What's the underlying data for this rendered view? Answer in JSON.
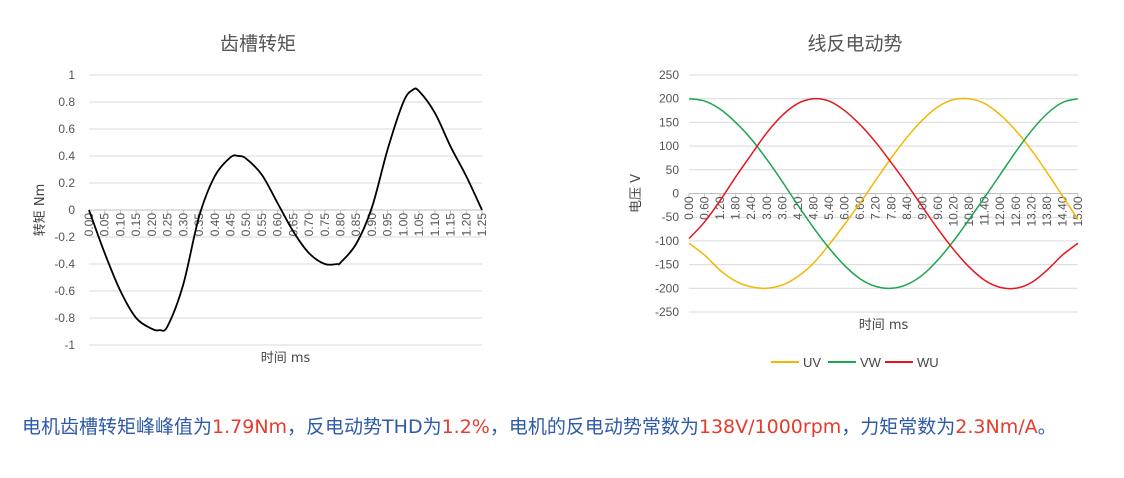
{
  "chart_data": [
    {
      "type": "line",
      "title": "齿槽转矩",
      "xlabel": "时间 ms",
      "ylabel": "转矩 Nm",
      "ylim": [
        -1,
        1
      ],
      "yticks": [
        "1",
        "0.8",
        "0.6",
        "0.4",
        "0.2",
        "0",
        "-0.2",
        "-0.4",
        "-0.6",
        "-0.8",
        "-1"
      ],
      "ytick_values": [
        1,
        0.8,
        0.6,
        0.4,
        0.2,
        0,
        -0.2,
        -0.4,
        -0.6,
        -0.8,
        -1
      ],
      "categories": [
        "0.00",
        "0.05",
        "0.10",
        "0.15",
        "0.20",
        "0.25",
        "0.30",
        "0.35",
        "0.40",
        "0.45",
        "0.50",
        "0.55",
        "0.60",
        "0.65",
        "0.70",
        "0.75",
        "0.80",
        "0.85",
        "0.90",
        "0.95",
        "1.00",
        "1.05",
        "1.10",
        "1.15",
        "1.20",
        "1.25"
      ],
      "grid": true,
      "series": [
        {
          "color": "#000000",
          "x": [
            0,
            0.05,
            0.1,
            0.15,
            0.2,
            0.225,
            0.25,
            0.3,
            0.35,
            0.4,
            0.45,
            0.475,
            0.5,
            0.55,
            0.6,
            0.65,
            0.7,
            0.75,
            0.79,
            0.8,
            0.85,
            0.9,
            0.95,
            1.0,
            1.03,
            1.05,
            1.1,
            1.15,
            1.2,
            1.25
          ],
          "values": [
            0,
            -0.32,
            -0.6,
            -0.8,
            -0.88,
            -0.89,
            -0.86,
            -0.55,
            -0.05,
            0.25,
            0.39,
            0.4,
            0.38,
            0.26,
            0.05,
            -0.16,
            -0.32,
            -0.4,
            -0.4,
            -0.39,
            -0.25,
            0.02,
            0.45,
            0.8,
            0.89,
            0.88,
            0.72,
            0.47,
            0.25,
            0.0
          ]
        }
      ]
    },
    {
      "type": "line",
      "title": "线反电动势",
      "xlabel": "时间 ms",
      "ylabel": "电压 V",
      "ylim": [
        -250,
        250
      ],
      "yticks": [
        "250",
        "200",
        "150",
        "100",
        "50",
        "0",
        "-50",
        "-100",
        "-150",
        "-200",
        "-250"
      ],
      "ytick_values": [
        250,
        200,
        150,
        100,
        50,
        0,
        -50,
        -100,
        -150,
        -200,
        -250
      ],
      "categories": [
        "0.00",
        "0.60",
        "1.20",
        "1.80",
        "2.40",
        "3.00",
        "3.60",
        "4.20",
        "4.80",
        "5.40",
        "6.00",
        "6.60",
        "7.20",
        "7.80",
        "8.40",
        "9.00",
        "9.60",
        "10.20",
        "10.80",
        "11.40",
        "12.00",
        "12.60",
        "13.20",
        "13.80",
        "14.40",
        "15.00"
      ],
      "grid": true,
      "legend_position": "bottom",
      "series": [
        {
          "name": "UV",
          "color": "#f2b705",
          "x": [
            0.0,
            0.6,
            1.2,
            1.8,
            2.4,
            3.0,
            3.6,
            4.2,
            4.8,
            5.4,
            6.0,
            6.6,
            7.2,
            7.8,
            8.4,
            9.0,
            9.6,
            10.2,
            10.8,
            11.4,
            12.0,
            12.6,
            13.2,
            13.8,
            14.4,
            15.0
          ],
          "values": [
            -105,
            -130,
            -162,
            -185,
            -197,
            -200,
            -193,
            -175,
            -147,
            -108,
            -65,
            -20,
            28,
            75,
            118,
            155,
            183,
            198,
            200,
            190,
            166,
            133,
            92,
            45,
            -5,
            -55
          ]
        },
        {
          "name": "VW",
          "color": "#1aa64a",
          "x": [
            0.0,
            0.6,
            1.2,
            1.8,
            2.4,
            3.0,
            3.6,
            4.2,
            4.8,
            5.4,
            6.0,
            6.6,
            7.2,
            7.8,
            8.4,
            9.0,
            9.6,
            10.2,
            10.8,
            11.4,
            12.0,
            12.6,
            13.2,
            13.8,
            14.4,
            15.0
          ],
          "values": [
            200,
            195,
            178,
            150,
            115,
            72,
            25,
            -25,
            -72,
            -115,
            -152,
            -180,
            -196,
            -200,
            -192,
            -172,
            -140,
            -100,
            -55,
            -8,
            40,
            88,
            132,
            168,
            192,
            200
          ]
        },
        {
          "name": "WU",
          "color": "#e8141c",
          "x": [
            0.0,
            0.6,
            1.2,
            1.8,
            2.4,
            3.0,
            3.6,
            4.2,
            4.8,
            5.4,
            6.0,
            6.6,
            7.2,
            7.8,
            8.4,
            9.0,
            9.6,
            10.2,
            10.8,
            11.4,
            12.0,
            12.6,
            13.2,
            13.8,
            14.4,
            15.0
          ],
          "values": [
            -95,
            -60,
            -15,
            35,
            82,
            128,
            165,
            190,
            200,
            195,
            175,
            145,
            108,
            65,
            20,
            -28,
            -75,
            -118,
            -155,
            -183,
            -198,
            -200,
            -188,
            -162,
            -130,
            -105
          ]
        }
      ]
    }
  ],
  "summary": [
    {
      "text": "电机齿槽转矩峰峰值为",
      "kind": "t"
    },
    {
      "text": "1.79Nm",
      "kind": "v"
    },
    {
      "text": "，反电动势THD为",
      "kind": "t"
    },
    {
      "text": "1.2%",
      "kind": "v"
    },
    {
      "text": "，电机的反电动势常数为",
      "kind": "t"
    },
    {
      "text": "138V/1000rpm",
      "kind": "v"
    },
    {
      "text": "，力矩常数为",
      "kind": "t"
    },
    {
      "text": "2.3Nm/A",
      "kind": "v"
    },
    {
      "text": "。",
      "kind": "t"
    }
  ]
}
